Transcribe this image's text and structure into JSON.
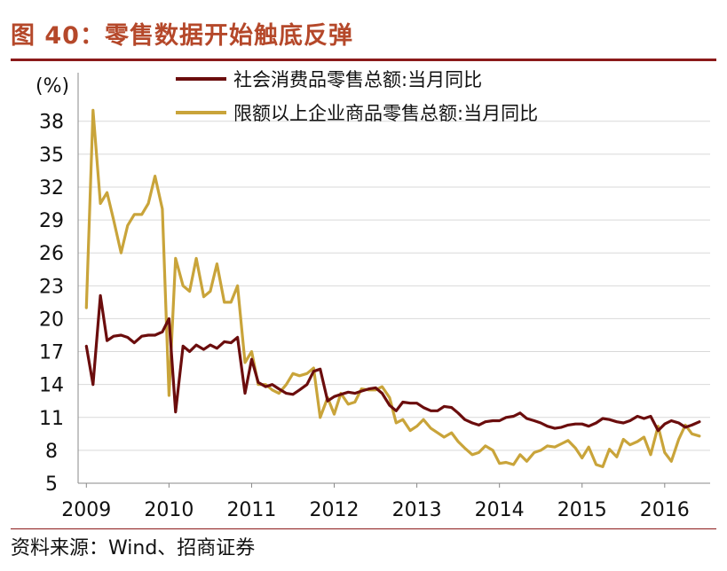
{
  "figure": {
    "title": "图 40：零售数据开始触底反弹",
    "source": "资料来源：Wind、招商证券"
  },
  "colors": {
    "title": "#b5482a",
    "rule": "#8b1a1a",
    "series1": "#6b0d0d",
    "series2": "#c9a43a",
    "grid": "#d9d9d9"
  },
  "chart_data": {
    "type": "line",
    "unit_label": "(%)",
    "ylim": [
      5,
      40
    ],
    "yticks": [
      5,
      8,
      11,
      14,
      17,
      20,
      23,
      26,
      29,
      32,
      35,
      38
    ],
    "xlim": [
      2008.9,
      2016.55
    ],
    "xticks": [
      2009,
      2010,
      2011,
      2012,
      2013,
      2014,
      2015,
      2016
    ],
    "grid": true,
    "legend": "top",
    "series": [
      {
        "name": "社会消费品零售总额:当月同比",
        "x": [
          2009.0,
          2009.08,
          2009.17,
          2009.25,
          2009.33,
          2009.42,
          2009.5,
          2009.58,
          2009.67,
          2009.75,
          2009.83,
          2009.92,
          2010.0,
          2010.08,
          2010.17,
          2010.25,
          2010.33,
          2010.42,
          2010.5,
          2010.58,
          2010.67,
          2010.75,
          2010.83,
          2010.92,
          2011.0,
          2011.08,
          2011.17,
          2011.25,
          2011.33,
          2011.42,
          2011.5,
          2011.58,
          2011.67,
          2011.75,
          2011.83,
          2011.92,
          2012.0,
          2012.08,
          2012.17,
          2012.25,
          2012.33,
          2012.42,
          2012.5,
          2012.58,
          2012.67,
          2012.75,
          2012.83,
          2012.92,
          2013.0,
          2013.08,
          2013.17,
          2013.25,
          2013.33,
          2013.42,
          2013.5,
          2013.58,
          2013.67,
          2013.75,
          2013.83,
          2013.92,
          2014.0,
          2014.08,
          2014.17,
          2014.25,
          2014.33,
          2014.42,
          2014.5,
          2014.58,
          2014.67,
          2014.75,
          2014.83,
          2014.92,
          2015.0,
          2015.08,
          2015.17,
          2015.25,
          2015.33,
          2015.42,
          2015.5,
          2015.58,
          2015.67,
          2015.75,
          2015.83,
          2015.92,
          2016.0,
          2016.08,
          2016.17,
          2016.25,
          2016.33,
          2016.42
        ],
        "values": [
          17.5,
          14.0,
          22.1,
          18.0,
          18.4,
          18.5,
          18.3,
          17.8,
          18.4,
          18.5,
          18.5,
          18.8,
          20.0,
          11.5,
          17.5,
          17.0,
          17.6,
          17.2,
          17.6,
          17.3,
          17.9,
          17.8,
          18.3,
          13.2,
          16.3,
          14.2,
          13.8,
          14.0,
          13.6,
          13.2,
          13.1,
          13.5,
          14.0,
          15.2,
          15.4,
          12.5,
          12.9,
          13.1,
          13.3,
          13.2,
          13.4,
          13.6,
          13.7,
          13.2,
          12.1,
          11.6,
          12.4,
          12.3,
          12.3,
          11.9,
          11.6,
          11.6,
          12.0,
          11.9,
          11.4,
          10.8,
          10.5,
          10.3,
          10.6,
          10.7,
          10.7,
          11.0,
          11.1,
          11.4,
          10.9,
          10.7,
          10.5,
          10.2,
          10.0,
          10.1,
          10.3,
          10.4,
          10.4,
          10.2,
          10.5,
          10.9,
          10.8,
          10.6,
          10.5,
          10.7,
          11.1,
          10.9,
          11.1,
          9.8,
          10.4,
          10.7,
          10.5,
          10.1,
          10.3,
          10.6
        ]
      },
      {
        "name": "限额以上企业商品零售总额:当月同比",
        "x": [
          2009.0,
          2009.08,
          2009.17,
          2009.25,
          2009.33,
          2009.42,
          2009.5,
          2009.58,
          2009.67,
          2009.75,
          2009.83,
          2009.92,
          2010.0,
          2010.08,
          2010.17,
          2010.25,
          2010.33,
          2010.42,
          2010.5,
          2010.58,
          2010.67,
          2010.75,
          2010.83,
          2010.92,
          2011.0,
          2011.08,
          2011.17,
          2011.25,
          2011.33,
          2011.42,
          2011.5,
          2011.58,
          2011.67,
          2011.75,
          2011.83,
          2011.92,
          2012.0,
          2012.08,
          2012.17,
          2012.25,
          2012.33,
          2012.42,
          2012.5,
          2012.58,
          2012.67,
          2012.75,
          2012.83,
          2012.92,
          2013.0,
          2013.08,
          2013.17,
          2013.25,
          2013.33,
          2013.42,
          2013.5,
          2013.58,
          2013.67,
          2013.75,
          2013.83,
          2013.92,
          2014.0,
          2014.08,
          2014.17,
          2014.25,
          2014.33,
          2014.42,
          2014.5,
          2014.58,
          2014.67,
          2014.75,
          2014.83,
          2014.92,
          2015.0,
          2015.08,
          2015.17,
          2015.25,
          2015.33,
          2015.42,
          2015.5,
          2015.58,
          2015.67,
          2015.75,
          2015.83,
          2015.92,
          2016.0,
          2016.08,
          2016.17,
          2016.25,
          2016.33,
          2016.42
        ],
        "values": [
          21.0,
          39.0,
          30.5,
          31.5,
          29.0,
          26.0,
          28.5,
          29.5,
          29.5,
          30.5,
          33.0,
          30.0,
          13.0,
          25.5,
          23.0,
          22.5,
          25.5,
          22.0,
          22.5,
          25.0,
          21.5,
          21.5,
          23.0,
          16.0,
          17.0,
          14.0,
          14.0,
          13.5,
          13.2,
          14.0,
          15.0,
          14.8,
          15.0,
          15.5,
          11.0,
          12.8,
          11.3,
          13.2,
          12.2,
          12.4,
          13.6,
          13.5,
          13.5,
          13.8,
          12.8,
          10.5,
          10.8,
          9.8,
          10.2,
          10.8,
          10.0,
          9.6,
          9.2,
          9.6,
          8.8,
          8.2,
          7.6,
          7.8,
          8.4,
          8.0,
          6.8,
          6.9,
          6.7,
          7.6,
          7.0,
          7.8,
          8.0,
          8.4,
          8.3,
          8.6,
          8.9,
          8.2,
          7.3,
          8.3,
          6.7,
          6.5,
          8.1,
          7.4,
          9.0,
          8.5,
          8.8,
          9.2,
          7.6,
          10.2,
          7.8,
          7.0,
          9.0,
          10.3,
          9.5,
          9.3
        ]
      }
    ]
  }
}
